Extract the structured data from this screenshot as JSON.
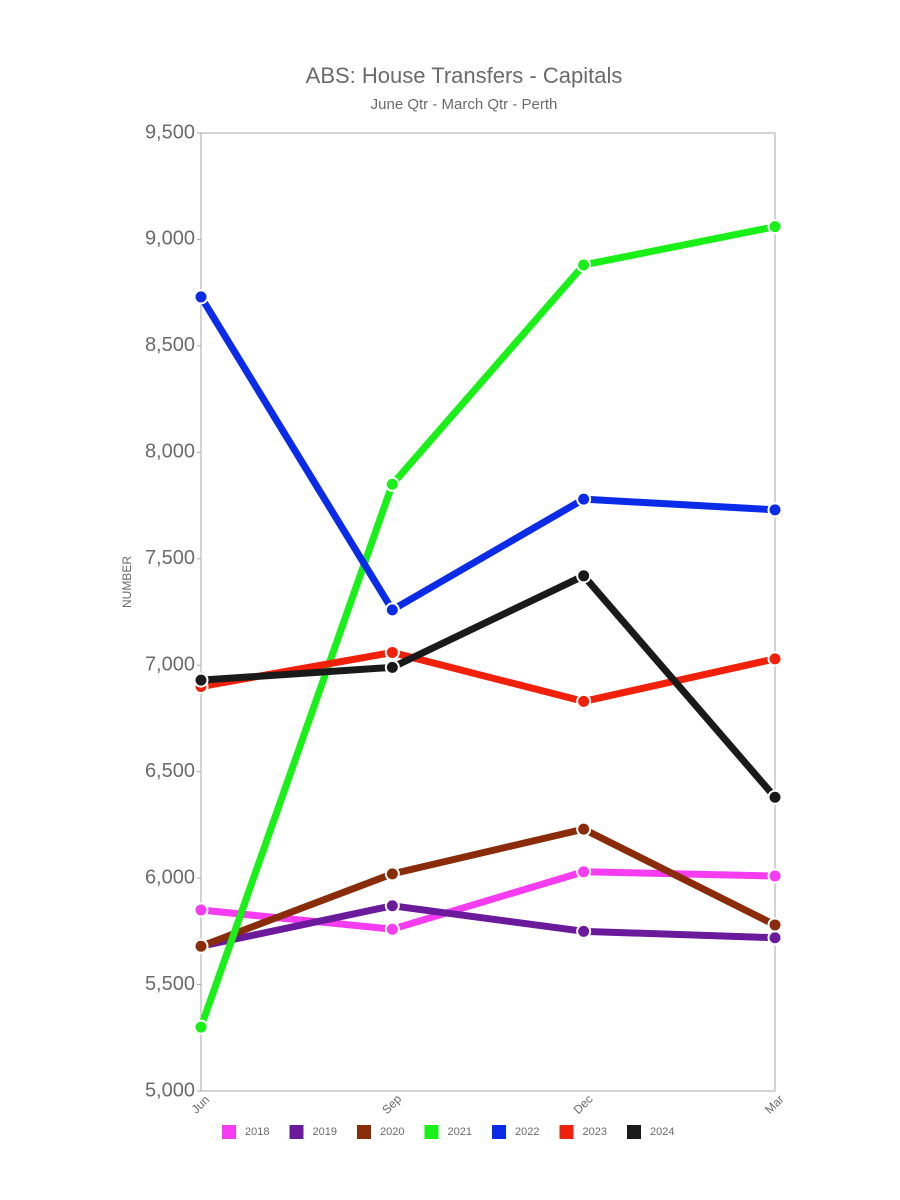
{
  "chart_data": {
    "type": "line",
    "title": "ABS: House Transfers - Capitals",
    "subtitle": "June Qtr - March Qtr - Perth",
    "y_label": "NUMBER",
    "categories": [
      "Jun",
      "Sep",
      "Dec",
      "Mar"
    ],
    "ylim": [
      5000,
      9500
    ],
    "yticks": [
      {
        "value": 5000,
        "label": "5,000"
      },
      {
        "value": 5500,
        "label": "5,500"
      },
      {
        "value": 6000,
        "label": "6,000"
      },
      {
        "value": 6500,
        "label": "6,500"
      },
      {
        "value": 7000,
        "label": "7,000"
      },
      {
        "value": 7500,
        "label": "7,500"
      },
      {
        "value": 8000,
        "label": "8,000"
      },
      {
        "value": 8500,
        "label": "8,500"
      },
      {
        "value": 9000,
        "label": "9,000"
      },
      {
        "value": 9500,
        "label": "9,500"
      }
    ],
    "grid": false,
    "legend": "bottom",
    "series": [
      {
        "name": "2018",
        "color": "#f53cf0",
        "values": [
          5850,
          5760,
          6030,
          6010
        ]
      },
      {
        "name": "2019",
        "color": "#6a1a9a",
        "values": [
          5680,
          5870,
          5750,
          5720
        ]
      },
      {
        "name": "2020",
        "color": "#8a2c0a",
        "values": [
          5680,
          6020,
          6230,
          5780
        ]
      },
      {
        "name": "2021",
        "color": "#18f018",
        "values": [
          5300,
          7850,
          8880,
          9060
        ]
      },
      {
        "name": "2022",
        "color": "#0a2be8",
        "values": [
          8730,
          7260,
          7780,
          7730
        ]
      },
      {
        "name": "2023",
        "color": "#f0200a",
        "values": [
          6900,
          7060,
          6830,
          7030
        ]
      },
      {
        "name": "2024",
        "color": "#1a1a1a",
        "values": [
          6930,
          6990,
          7420,
          6380
        ]
      }
    ]
  }
}
